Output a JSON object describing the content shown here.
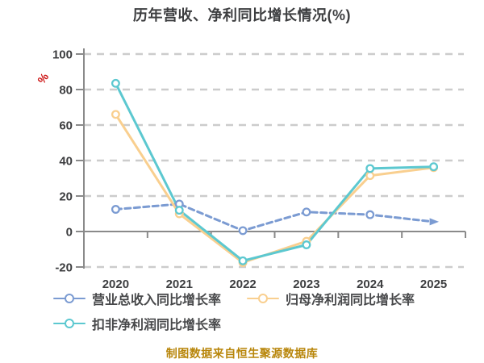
{
  "title": "历年营收、净利同比增长情况(%)",
  "footer": {
    "text": "制图数据来自恒生聚源数据库",
    "color": "#b8860b"
  },
  "chart_data": {
    "type": "line",
    "title": "历年营收、净利同比增长情况(%)",
    "xlabel": "",
    "ylabel": "%",
    "ylabel_color": "#cc1111",
    "categories": [
      "2020",
      "2021",
      "2022",
      "2023",
      "2024",
      "2025"
    ],
    "yticks": [
      100,
      80,
      60,
      40,
      20,
      0,
      -20
    ],
    "ylim": [
      -20,
      100
    ],
    "grid": "horizontal-dashed",
    "grid_color": "#cccccc",
    "axis_color": "#8a8a8a",
    "label_color": "#3d3e40",
    "legend_position": "bottom-left",
    "series": [
      {
        "name": "营业总收入同比增长率",
        "color": "#7b9bd2",
        "style": "dashed",
        "marker": "circle",
        "last_marker": "arrow",
        "values": [
          12.5,
          15.5,
          0.5,
          11,
          9.5,
          5.5
        ]
      },
      {
        "name": "归母净利润同比增长率",
        "color": "#f9cf8f",
        "style": "solid",
        "marker": "circle",
        "last_marker": "circle",
        "values": [
          66,
          10,
          -17.5,
          -5.5,
          31.5,
          36
        ]
      },
      {
        "name": "扣非净利润同比增长率",
        "color": "#5cc8d0",
        "style": "solid",
        "marker": "circle",
        "last_marker": "circle",
        "values": [
          83.5,
          12,
          -16.5,
          -7.5,
          35.5,
          36.5
        ]
      }
    ]
  }
}
